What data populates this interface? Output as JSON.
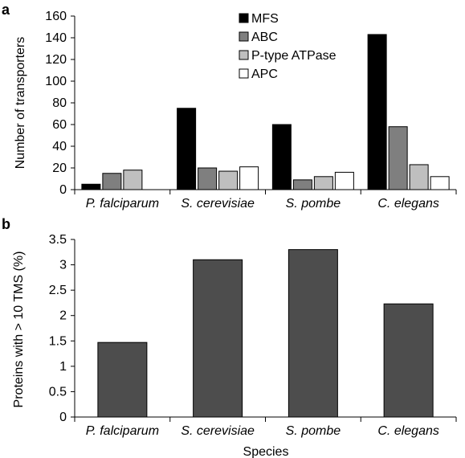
{
  "chart_data": [
    {
      "type": "bar",
      "panel_label": "a",
      "categories": [
        "P. falciparum",
        "S. cerevisiae",
        "S. pombe",
        "C. elegans"
      ],
      "series": [
        {
          "name": "MFS",
          "values": [
            5,
            75,
            60,
            143
          ],
          "color": "#000000"
        },
        {
          "name": "ABC",
          "values": [
            15,
            20,
            9,
            58
          ],
          "color": "#7f7f7f"
        },
        {
          "name": "P-type ATPase",
          "values": [
            18,
            17,
            12,
            23
          ],
          "color": "#bfbfbf"
        },
        {
          "name": "APC",
          "values": [
            0,
            21,
            16,
            12
          ],
          "color": "#ffffff"
        }
      ],
      "ylabel": "Number of transporters",
      "xlabel": "",
      "ylim": [
        0,
        160
      ],
      "yticks": [
        "0",
        "20",
        "40",
        "60",
        "80",
        "100",
        "120",
        "140",
        "160"
      ],
      "legend": "top-center",
      "grid": false
    },
    {
      "type": "bar",
      "panel_label": "b",
      "categories": [
        "P. falciparum",
        "S. cerevisiae",
        "S. pombe",
        "C. elegans"
      ],
      "values": [
        1.47,
        3.1,
        3.3,
        2.23
      ],
      "color": "#4d4d4d",
      "ylabel": "Proteins with > 10 TMS (%)",
      "xlabel": "Species",
      "ylim": [
        0,
        3.5
      ],
      "yticks": [
        "0",
        "0.5",
        "1",
        "1.5",
        "2",
        "2.5",
        "3",
        "3.5"
      ],
      "grid": false
    }
  ]
}
